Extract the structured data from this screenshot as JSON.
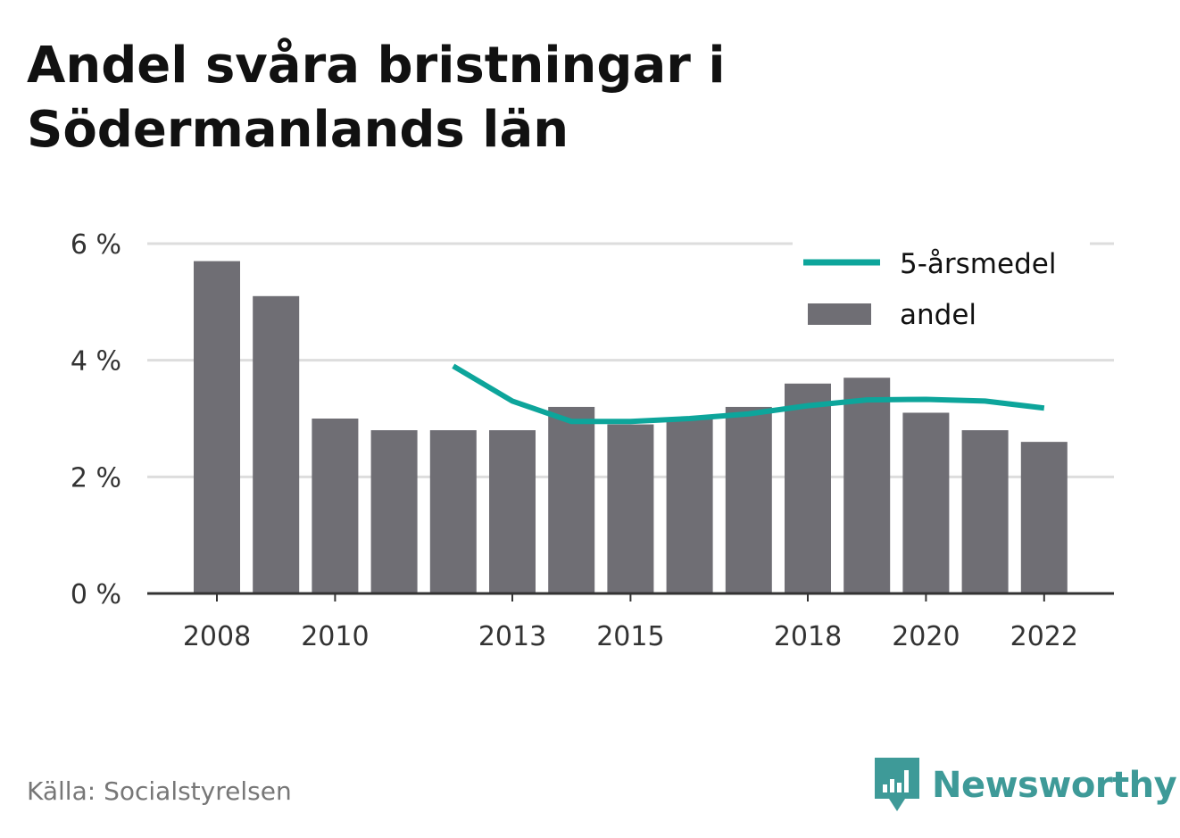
{
  "title": "Andel svåra bristningar i Södermanlands län",
  "source": "Källa: Socialstyrelsen",
  "brand": "Newsworthy",
  "colors": {
    "bar": "#6f6e74",
    "line": "#0da59b",
    "grid": "#dddddd",
    "axis": "#333333",
    "brand": "#3e9a98"
  },
  "chart_data": {
    "type": "bar",
    "categories": [
      2008,
      2009,
      2010,
      2011,
      2012,
      2013,
      2014,
      2015,
      2016,
      2017,
      2018,
      2019,
      2020,
      2021,
      2022
    ],
    "x_tick_labels": [
      "2008",
      "2010",
      "2013",
      "2015",
      "2018",
      "2020",
      "2022"
    ],
    "series": [
      {
        "name": "andel",
        "type": "bar",
        "values": [
          5.7,
          5.1,
          3.0,
          2.8,
          2.8,
          2.8,
          3.2,
          2.9,
          3.0,
          3.2,
          3.6,
          3.7,
          3.1,
          2.8,
          2.6
        ]
      },
      {
        "name": "5-årsmedel",
        "type": "line",
        "values": [
          null,
          null,
          null,
          null,
          3.9,
          3.3,
          2.95,
          2.95,
          3.0,
          3.08,
          3.22,
          3.32,
          3.33,
          3.3,
          3.18
        ]
      }
    ],
    "ylim": [
      0,
      6
    ],
    "y_ticks": [
      0,
      2,
      4,
      6
    ],
    "y_tick_labels": [
      "0 %",
      "2 %",
      "4 %",
      "6 %"
    ],
    "grid": true,
    "legend": "top-right"
  }
}
